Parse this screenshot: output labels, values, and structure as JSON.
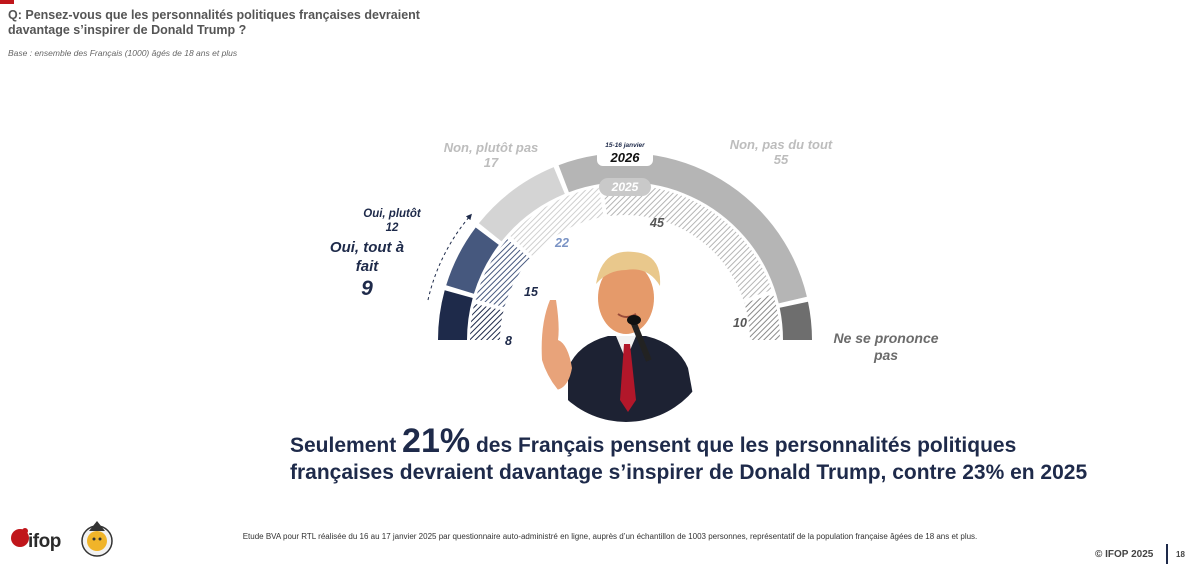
{
  "header": {
    "question": "Q: Pensez-vous que les personnalités politiques françaises devraient davantage s’inspirer de Donald Trump ?",
    "base": "Base : ensemble des Français (1000) âgés de 18 ans et plus"
  },
  "chart_data": {
    "type": "semicircle-donut",
    "outer_ring": {
      "date_label": "15-16 janvier",
      "year_label": "2026",
      "segments": [
        {
          "name": "Oui, tout à fait",
          "value": 9,
          "color": "#1e2a4a"
        },
        {
          "name": "Oui, plutôt",
          "value": 12,
          "color": "#46587e"
        },
        {
          "name": "Non, plutôt pas",
          "value": 17,
          "color": "#d4d4d4"
        },
        {
          "name": "Non, pas du tout",
          "value": 55,
          "color": "#b5b5b5"
        },
        {
          "name": "Ne se prononce pas",
          "value": 7,
          "color": "#6e6e6e"
        }
      ]
    },
    "inner_ring": {
      "year_label": "2025",
      "segments": [
        {
          "name": "Oui, tout à fait",
          "value": 8,
          "color": "#1e2a4a"
        },
        {
          "name": "Oui, plutôt",
          "value": 15,
          "color": "#46587e"
        },
        {
          "name": "Non, plutôt pas",
          "value": 22,
          "color": "#d4d4d4"
        },
        {
          "name": "Non, pas du tout",
          "value": 45,
          "color": "#b5b5b5"
        },
        {
          "name": "Ne se prononce pas",
          "value": 10,
          "color": "#6e6e6e"
        }
      ]
    }
  },
  "labels": {
    "oui_plutot_name": "Oui, plutôt",
    "oui_plutot_value": "12",
    "oui_tout_a_fait_name_1": "Oui, tout à",
    "oui_tout_a_fait_name_2": "fait",
    "oui_tout_a_fait_value": "9",
    "non_plutot_pas_name": "Non, plutôt pas",
    "non_plutot_pas_value": "17",
    "non_pas_du_tout_name": "Non, pas du tout",
    "non_pas_du_tout_value": "55",
    "nsp_name_1": "Ne se prononce",
    "nsp_name_2": "pas",
    "inner_8": "8",
    "inner_15": "15",
    "inner_22": "22",
    "inner_45": "45",
    "inner_10": "10"
  },
  "headline": {
    "part1": "Seulement ",
    "big": "21%",
    "part2": " des Français pensent que les personnalités politiques françaises devraient davantage s’inspirer de Donald Trump, contre 23% en 2025"
  },
  "footer": {
    "note": "Etude BVA pour RTL réalisée du 16 au 17 janvier 2025 par questionnaire auto-administré en ligne, auprès d’un échantillon de 1003 personnes, représentatif de la population française âgées de 18 ans et plus.",
    "logo_text": "ifop",
    "copyright": "© IFOP 2025",
    "page": "18"
  },
  "colors": {
    "navy": "#1e2a4a",
    "accent_red": "#c0161b",
    "inner_22_color": "#7a93c4"
  }
}
